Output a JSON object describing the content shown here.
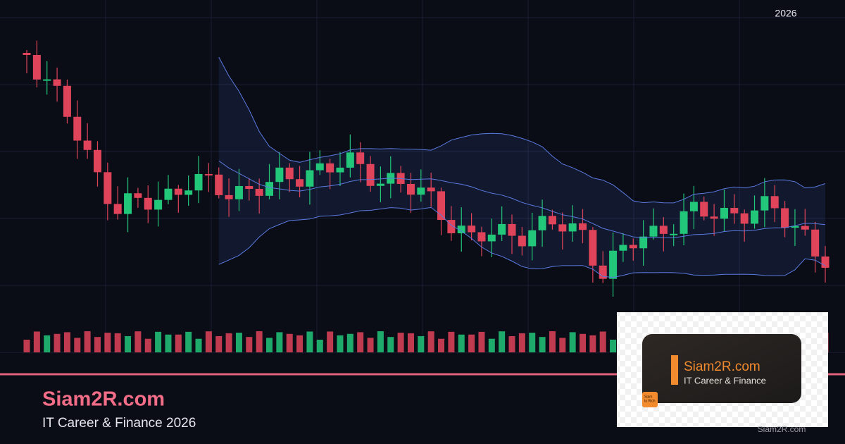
{
  "header": {
    "year": "2026"
  },
  "brand": {
    "title": "Siam2R.com",
    "subtitle": "IT Career & Finance 2026"
  },
  "badge": {
    "title": "Siam2R.com",
    "subtitle": "IT Career & Finance",
    "icon_lines": [
      "Siam",
      "to Rich"
    ]
  },
  "watermark": "Siam2R.com"
}
